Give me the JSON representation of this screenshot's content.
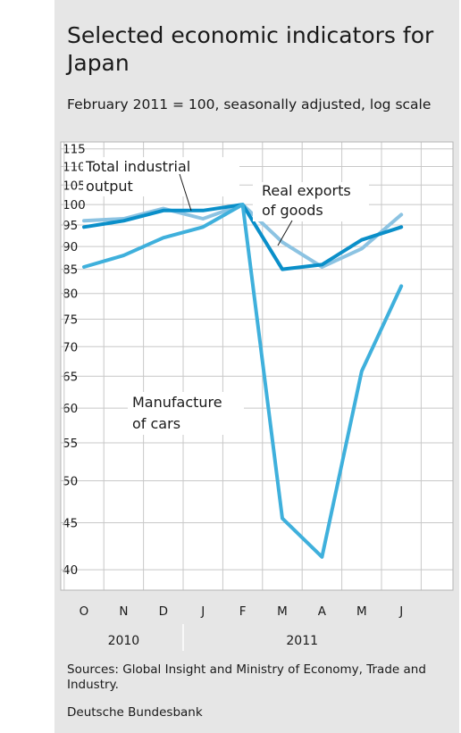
{
  "title": "Selected economic indicators for Japan",
  "subtitle": "February 2011 = 100, seasonally adjusted, log scale",
  "footer": {
    "sources": "Sources: Global Insight and Ministry of Economy, Trade and Industry.",
    "publisher": "Deutsche Bundesbank"
  },
  "colors": {
    "background": "#e6e6e6",
    "total_industrial_output": "#0a8fc9",
    "real_exports_of_goods": "#8cc3e2",
    "manufacture_of_cars": "#3fb0dc"
  },
  "chart_data": {
    "type": "line",
    "scale": "log",
    "grid": true,
    "ylim": [
      38,
      117
    ],
    "yticks": [
      "40",
      "45",
      "50",
      "55",
      "60",
      "65",
      "70",
      "75",
      "80",
      "85",
      "90",
      "95",
      "100",
      "105",
      "110",
      "115"
    ],
    "categories": [
      "O",
      "N",
      "D",
      "J",
      "F",
      "M",
      "A",
      "M",
      "J"
    ],
    "year_labels": [
      {
        "label": "2010",
        "span": [
          "O",
          "D"
        ]
      },
      {
        "label": "2011",
        "span": [
          "J",
          "J"
        ]
      }
    ],
    "series": [
      {
        "name": "Real exports of goods",
        "color_key": "real_exports_of_goods",
        "values": [
          96,
          96.5,
          99,
          96.5,
          100,
          91,
          85.5,
          89.5,
          97.5
        ]
      },
      {
        "name": "Total industrial output",
        "color_key": "total_industrial_output",
        "values": [
          94.5,
          96,
          98.5,
          98.5,
          100,
          85,
          86,
          91.5,
          94.5
        ]
      },
      {
        "name": "Manufacture of cars",
        "color_key": "manufacture_of_cars",
        "values": [
          85.5,
          88,
          92,
          94.5,
          100,
          45.5,
          41.3,
          65.8,
          81.5
        ]
      }
    ],
    "annotations": [
      {
        "series": "Total industrial output",
        "lines": [
          "Total industrial",
          "output"
        ]
      },
      {
        "series": "Real exports of goods",
        "lines": [
          "Real exports",
          "of goods"
        ]
      },
      {
        "series": "Manufacture of cars",
        "lines": [
          "Manufacture",
          "of cars"
        ]
      }
    ]
  }
}
